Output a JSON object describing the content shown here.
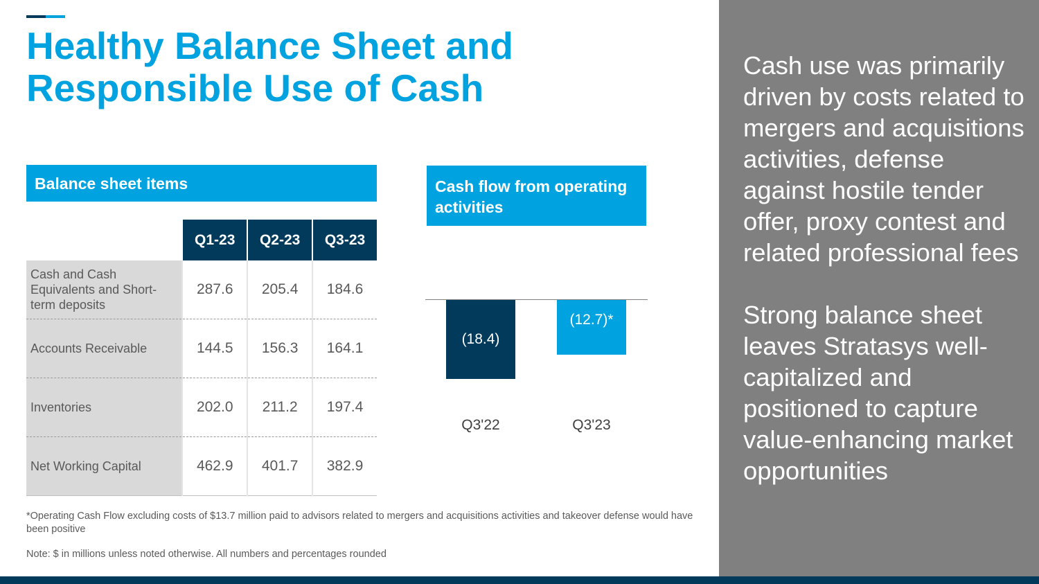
{
  "title": "Healthy Balance Sheet and Responsible Use of Cash",
  "balance_sheet": {
    "header": "Balance sheet items",
    "columns": [
      "Q1-23",
      "Q2-23",
      "Q3-23"
    ],
    "rows": [
      {
        "label": "Cash and Cash Equivalents and Short-term deposits",
        "values": [
          "287.6",
          "205.4",
          "184.6"
        ]
      },
      {
        "label": "Accounts Receivable",
        "values": [
          "144.5",
          "156.3",
          "164.1"
        ]
      },
      {
        "label": "Inventories",
        "values": [
          "202.0",
          "211.2",
          "197.4"
        ]
      },
      {
        "label": "Net Working Capital",
        "values": [
          "462.9",
          "401.7",
          "382.9"
        ]
      }
    ]
  },
  "chart_data": {
    "type": "bar",
    "title": "Cash flow from operating activities",
    "categories": [
      "Q3'22",
      "Q3'23"
    ],
    "values": [
      -18.4,
      -12.7
    ],
    "data_labels": [
      "(18.4)",
      "(12.7)*"
    ],
    "colors": [
      "#023a5c",
      "#00a3e0"
    ]
  },
  "footnotes": {
    "asterisk": "*Operating Cash Flow excluding costs of $13.7 million paid to advisors related to mergers and acquisitions activities and takeover defense would have been positive",
    "note": "Note: $ in millions unless noted otherwise. All numbers and percentages rounded"
  },
  "panel": [
    "Cash use was primarily driven by costs related to mergers and acquisitions activities, defense against hostile tender offer, proxy contest and related professional fees",
    "Strong balance sheet leaves Stratasys well-capitalized and positioned to capture value-enhancing market opportunities"
  ],
  "colors": {
    "navy": "#023a5c",
    "cyan": "#00a3e0",
    "panel": "#808080"
  }
}
